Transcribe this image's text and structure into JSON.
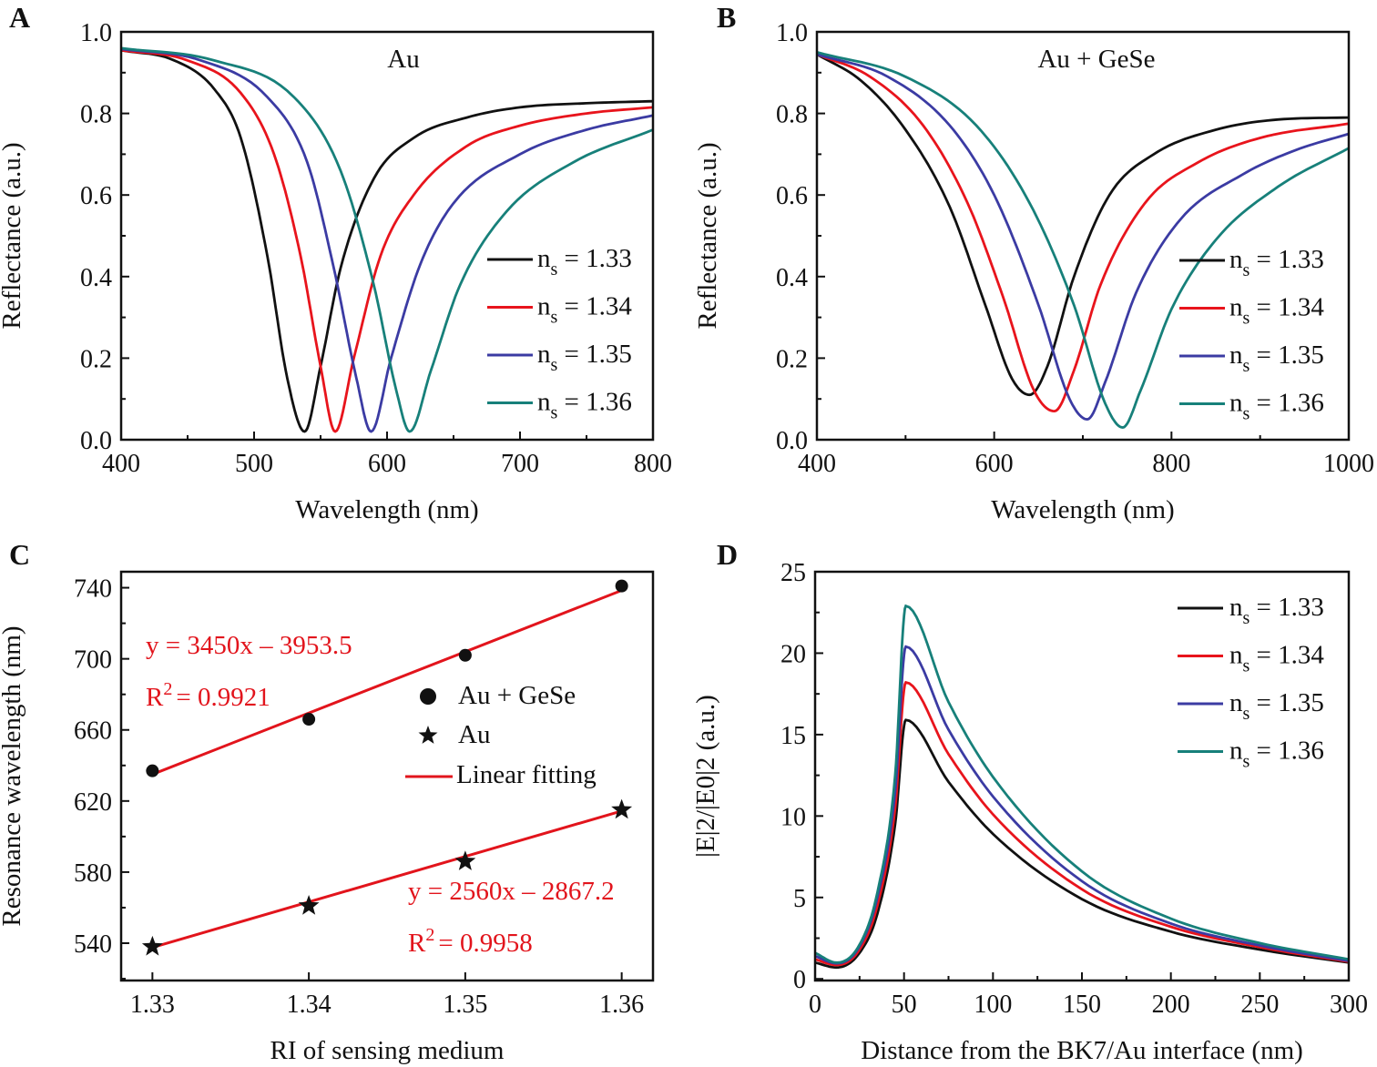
{
  "colors": {
    "black": "#111111",
    "red": "#e8141c",
    "blue": "#3b3ba3",
    "teal": "#17807a",
    "fit": "#e2141c"
  },
  "chart_data": [
    {
      "panel": "A",
      "type": "line",
      "title": "Au",
      "xlabel": "Wavelength (nm)",
      "ylabel": "Reflectance (a.u.)",
      "xlim": [
        400,
        800
      ],
      "ylim": [
        0,
        1.0
      ],
      "xticks": [
        "400",
        "500",
        "600",
        "700",
        "800"
      ],
      "yticks": [
        "0.0",
        "0.2",
        "0.4",
        "0.6",
        "0.8",
        "1.0"
      ],
      "legend": "right",
      "series": [
        {
          "name": "ns = 1.33",
          "color": "black",
          "x": [
            400,
            440,
            470,
            490,
            510,
            525,
            538,
            550,
            565,
            590,
            620,
            660,
            700,
            750,
            800
          ],
          "y": [
            0.955,
            0.93,
            0.86,
            0.74,
            0.45,
            0.15,
            0.02,
            0.18,
            0.42,
            0.64,
            0.74,
            0.79,
            0.815,
            0.825,
            0.83
          ]
        },
        {
          "name": "ns = 1.34",
          "color": "red",
          "x": [
            400,
            450,
            490,
            515,
            535,
            550,
            561,
            575,
            595,
            620,
            660,
            700,
            750,
            800
          ],
          "y": [
            0.955,
            0.93,
            0.85,
            0.7,
            0.45,
            0.18,
            0.02,
            0.2,
            0.45,
            0.6,
            0.72,
            0.77,
            0.8,
            0.815
          ]
        },
        {
          "name": "ns = 1.35",
          "color": "blue",
          "x": [
            400,
            460,
            510,
            540,
            560,
            577,
            588,
            603,
            625,
            650,
            700,
            750,
            800
          ],
          "y": [
            0.958,
            0.93,
            0.84,
            0.68,
            0.42,
            0.15,
            0.02,
            0.2,
            0.43,
            0.58,
            0.7,
            0.76,
            0.795
          ]
        },
        {
          "name": "ns = 1.36",
          "color": "teal",
          "x": [
            400,
            470,
            530,
            565,
            590,
            607,
            617,
            633,
            655,
            690,
            740,
            800
          ],
          "y": [
            0.96,
            0.93,
            0.84,
            0.66,
            0.38,
            0.12,
            0.02,
            0.17,
            0.38,
            0.56,
            0.68,
            0.76
          ]
        }
      ]
    },
    {
      "panel": "B",
      "type": "line",
      "title": "Au + GeSe",
      "xlabel": "Wavelength (nm)",
      "ylabel": "Reflectance (a.u.)",
      "xlim": [
        400,
        1000
      ],
      "ylim": [
        0,
        1.0
      ],
      "xticks": [
        "400",
        "600",
        "800",
        "1000"
      ],
      "yticks": [
        "0.0",
        "0.2",
        "0.4",
        "0.6",
        "0.8",
        "1.0"
      ],
      "legend": "right",
      "series": [
        {
          "name": "ns = 1.33",
          "color": "black",
          "x": [
            400,
            450,
            500,
            550,
            590,
            620,
            640,
            660,
            690,
            730,
            780,
            850,
            920,
            1000
          ],
          "y": [
            0.945,
            0.88,
            0.76,
            0.57,
            0.33,
            0.15,
            0.11,
            0.18,
            0.4,
            0.6,
            0.7,
            0.76,
            0.785,
            0.79
          ]
        },
        {
          "name": "ns = 1.34",
          "color": "red",
          "x": [
            400,
            460,
            520,
            570,
            610,
            645,
            668,
            690,
            720,
            770,
            830,
            900,
            1000
          ],
          "y": [
            0.945,
            0.89,
            0.77,
            0.58,
            0.35,
            0.12,
            0.07,
            0.17,
            0.38,
            0.58,
            0.68,
            0.74,
            0.775
          ]
        },
        {
          "name": "ns = 1.35",
          "color": "blue",
          "x": [
            400,
            480,
            550,
            600,
            650,
            685,
            705,
            725,
            760,
            810,
            880,
            940,
            1000
          ],
          "y": [
            0.945,
            0.89,
            0.77,
            0.6,
            0.33,
            0.1,
            0.05,
            0.14,
            0.36,
            0.54,
            0.65,
            0.71,
            0.75
          ]
        },
        {
          "name": "ns = 1.36",
          "color": "teal",
          "x": [
            400,
            500,
            580,
            640,
            690,
            725,
            745,
            765,
            800,
            850,
            920,
            1000
          ],
          "y": [
            0.95,
            0.89,
            0.77,
            0.58,
            0.33,
            0.09,
            0.03,
            0.12,
            0.32,
            0.49,
            0.62,
            0.715
          ]
        }
      ]
    },
    {
      "panel": "C",
      "type": "scatter",
      "xlabel": "RI of sensing medium",
      "ylabel": "Resonance wavelength (nm)",
      "xlim": [
        1.328,
        1.362
      ],
      "ylim": [
        519,
        749
      ],
      "xticks": [
        "1.33",
        "1.34",
        "1.35",
        "1.36"
      ],
      "yticks": [
        "540",
        "580",
        "620",
        "660",
        "700",
        "740"
      ],
      "legend": "center-right",
      "series": [
        {
          "name": "Au + GeSe",
          "marker": "circle",
          "x": [
            1.33,
            1.34,
            1.35,
            1.36
          ],
          "y": [
            637,
            666,
            702,
            741
          ]
        },
        {
          "name": "Au",
          "marker": "star",
          "x": [
            1.33,
            1.34,
            1.35,
            1.36
          ],
          "y": [
            538,
            561,
            586,
            615
          ]
        }
      ],
      "fits": [
        {
          "name": "Linear fitting",
          "slope": 3450,
          "intercept": -3953.5,
          "equation": "y = 3450x – 3953.5",
          "r2_label": "R",
          "r2_value": "= 0.9921"
        },
        {
          "slope": 2560,
          "intercept": -2867.2,
          "equation": "y = 2560x – 2867.2",
          "r2_label": "R",
          "r2_value": "= 0.9958"
        }
      ]
    },
    {
      "panel": "D",
      "type": "line",
      "xlabel": "Distance from the BK7/Au interface (nm)",
      "ylabel": "|E|2/|E0|2 (a.u.)",
      "xlim": [
        0,
        300
      ],
      "ylim": [
        -0.1,
        25
      ],
      "xticks": [
        "0",
        "50",
        "100",
        "150",
        "200",
        "250",
        "300"
      ],
      "yticks": [
        "0",
        "5",
        "10",
        "15",
        "20",
        "25"
      ],
      "legend": "top-right",
      "series": [
        {
          "name": "ns = 1.33",
          "color": "black",
          "x": [
            0,
            12,
            25,
            35,
            45,
            51,
            75,
            100,
            150,
            200,
            250,
            300
          ],
          "y": [
            1.0,
            0.7,
            1.6,
            4,
            9.5,
            15.9,
            12.1,
            8.9,
            4.9,
            2.9,
            1.8,
            1.0
          ]
        },
        {
          "name": "ns = 1.34",
          "color": "red",
          "x": [
            0,
            12,
            25,
            35,
            45,
            51,
            75,
            100,
            150,
            200,
            250,
            300
          ],
          "y": [
            1.2,
            0.85,
            1.8,
            4.5,
            10.5,
            18.2,
            13.8,
            10.1,
            5.5,
            3.2,
            1.95,
            1.05
          ]
        },
        {
          "name": "ns = 1.35",
          "color": "blue",
          "x": [
            0,
            12,
            25,
            35,
            45,
            51,
            75,
            100,
            150,
            200,
            250,
            300
          ],
          "y": [
            1.4,
            0.95,
            2.0,
            5,
            11.5,
            20.4,
            15.3,
            11.2,
            6.0,
            3.4,
            2.05,
            1.1
          ]
        },
        {
          "name": "ns = 1.36",
          "color": "teal",
          "x": [
            0,
            12,
            25,
            35,
            45,
            51,
            75,
            100,
            150,
            200,
            250,
            300
          ],
          "y": [
            1.6,
            1.0,
            2.1,
            5.3,
            12.5,
            22.9,
            17.0,
            12.4,
            6.6,
            3.7,
            2.2,
            1.2
          ]
        }
      ]
    }
  ]
}
